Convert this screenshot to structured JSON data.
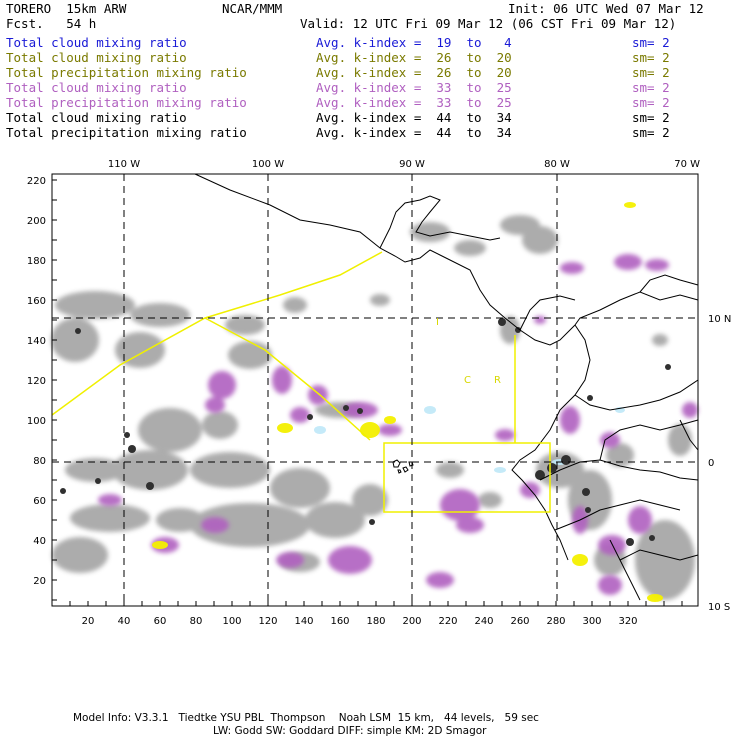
{
  "header": {
    "model": "TORERO  15km ARW",
    "center": "NCAR/MMM",
    "init": "Init: 06 UTC Wed 07 Mar 12",
    "fcst": "Fcst.   54 h",
    "valid": "Valid: 12 UTC Fri 09 Mar 12 (06 CST Fri 09 Mar 12)"
  },
  "legend": [
    {
      "name": "Total cloud mixing ratio",
      "kindex": "Avg. k-index =  19  to   4",
      "sm": "sm= 2",
      "color": "#1a1ad6"
    },
    {
      "name": "Total cloud mixing ratio",
      "kindex": "Avg. k-index =  26  to  20",
      "sm": "sm= 2",
      "color": "#7a7a00"
    },
    {
      "name": "Total precipitation mixing ratio",
      "kindex": "Avg. k-index =  26  to  20",
      "sm": "sm= 2",
      "color": "#7a7a00"
    },
    {
      "name": "Total cloud mixing ratio",
      "kindex": "Avg. k-index =  33  to  25",
      "sm": "sm= 2",
      "color": "#b060c0"
    },
    {
      "name": "Total precipitation mixing ratio",
      "kindex": "Avg. k-index =  33  to  25",
      "sm": "sm= 2",
      "color": "#b060c0"
    },
    {
      "name": "Total cloud mixing ratio",
      "kindex": "Avg. k-index =  44  to  34",
      "sm": "sm= 2",
      "color": "#000000"
    },
    {
      "name": "Total precipitation mixing ratio",
      "kindex": "Avg. k-index =  44  to  34",
      "sm": "sm= 2",
      "color": "#000000"
    }
  ],
  "map": {
    "top_lon_labels": [
      "110 W",
      "100 W",
      "90 W",
      "80 W",
      "70 W"
    ],
    "right_lat_labels": [
      "10 N",
      "0",
      "10 S"
    ],
    "y_ticks": [
      "220",
      "200",
      "180",
      "160",
      "140",
      "120",
      "100",
      "80",
      "60",
      "40",
      "20"
    ],
    "x_ticks": [
      "20",
      "40",
      "60",
      "80",
      "100",
      "120",
      "140",
      "160",
      "180",
      "200",
      "220",
      "240",
      "260",
      "280",
      "300",
      "320"
    ],
    "region_labels": [
      "I",
      "C",
      "R"
    ]
  },
  "footer": {
    "line1": "Model Info: V3.3.1   Tiedtke YSU PBL  Thompson    Noah LSM  15 km,   44 levels,   59 sec",
    "line2": "LW: Godd SW: Goddard DIFF: simple KM: 2D Smagor"
  }
}
